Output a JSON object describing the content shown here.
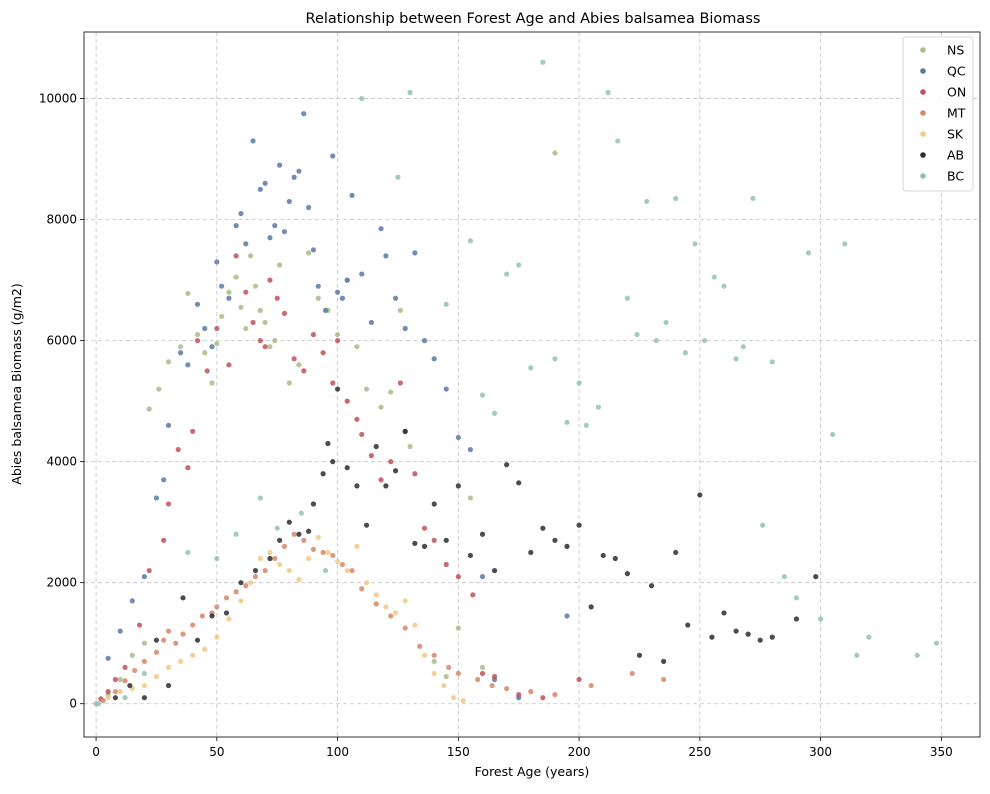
{
  "chart_data": {
    "type": "scatter",
    "title": "Relationship between Forest Age and Abies balsamea Biomass",
    "xlabel": "Forest Age (years)",
    "ylabel": "Abies balsamea Biomass (g/m2)",
    "xlim": [
      -5,
      366
    ],
    "ylim": [
      -550,
      11100
    ],
    "xticks": [
      0,
      50,
      100,
      150,
      200,
      250,
      300,
      350
    ],
    "yticks": [
      0,
      2000,
      4000,
      6000,
      8000,
      10000
    ],
    "xtick_labels": [
      "0",
      "50",
      "100",
      "150",
      "200",
      "250",
      "300",
      "350"
    ],
    "ytick_labels": [
      "0",
      "2000",
      "4000",
      "6000",
      "8000",
      "10000"
    ],
    "grid": true,
    "legend_position": "top-right",
    "series": [
      {
        "name": "NS",
        "color": "#a8bc8a",
        "x": [
          0,
          5,
          10,
          15,
          20,
          22,
          26,
          30,
          35,
          38,
          42,
          45,
          48,
          50,
          52,
          55,
          58,
          60,
          62,
          64,
          66,
          68,
          70,
          72,
          74,
          76,
          80,
          84,
          88,
          92,
          96,
          100,
          104,
          108,
          112,
          118,
          122,
          126,
          130,
          140,
          145,
          150,
          155,
          160,
          190
        ],
        "y": [
          0,
          150,
          400,
          800,
          1000,
          4870,
          5200,
          5650,
          5900,
          6780,
          6100,
          5800,
          5300,
          5950,
          6400,
          6800,
          7050,
          6550,
          6200,
          7400,
          6900,
          6500,
          6300,
          5900,
          6000,
          7250,
          5300,
          5600,
          7450,
          6700,
          6500,
          6100,
          7000,
          5900,
          5200,
          4900,
          5150,
          6500,
          4250,
          700,
          450,
          1250,
          3400,
          600,
          9100
        ]
      },
      {
        "name": "QC",
        "color": "#5879a6",
        "x": [
          5,
          10,
          15,
          20,
          25,
          28,
          30,
          35,
          38,
          42,
          45,
          48,
          50,
          52,
          55,
          58,
          60,
          62,
          65,
          68,
          70,
          72,
          74,
          76,
          78,
          80,
          82,
          84,
          86,
          88,
          90,
          92,
          95,
          98,
          100,
          102,
          104,
          106,
          110,
          114,
          118,
          120,
          124,
          128,
          132,
          136,
          140,
          145,
          150,
          155,
          160,
          165,
          175,
          195
        ],
        "y": [
          750,
          1200,
          1700,
          2100,
          3400,
          3700,
          4600,
          5800,
          5600,
          6600,
          6200,
          5900,
          7300,
          6900,
          6700,
          7900,
          8100,
          7600,
          9300,
          8500,
          8600,
          7700,
          7900,
          8900,
          7800,
          8300,
          8700,
          8800,
          9750,
          8200,
          7500,
          6900,
          6500,
          9050,
          6800,
          6700,
          7000,
          8400,
          7100,
          6300,
          7850,
          7400,
          6700,
          6200,
          7450,
          6000,
          5700,
          5200,
          4400,
          4200,
          2100,
          400,
          100,
          1450
        ]
      },
      {
        "name": "ON",
        "color": "#c0505c",
        "x": [
          2,
          5,
          8,
          12,
          18,
          22,
          28,
          30,
          34,
          38,
          40,
          42,
          46,
          50,
          55,
          58,
          62,
          65,
          68,
          70,
          72,
          75,
          78,
          82,
          86,
          90,
          94,
          98,
          100,
          104,
          108,
          110,
          114,
          118,
          122,
          126,
          128,
          132,
          136,
          140,
          145,
          150,
          156,
          160,
          165,
          175,
          185,
          200
        ],
        "y": [
          80,
          200,
          400,
          600,
          1300,
          2200,
          2700,
          3300,
          4200,
          3900,
          4500,
          6000,
          5500,
          6200,
          5600,
          7400,
          6800,
          6300,
          6000,
          5900,
          7000,
          6700,
          6450,
          5700,
          5500,
          6100,
          5800,
          5300,
          6000,
          5000,
          4700,
          4450,
          4100,
          3700,
          4000,
          5300,
          4500,
          3800,
          2900,
          2700,
          2300,
          2100,
          1800,
          500,
          450,
          150,
          100,
          400
        ]
      },
      {
        "name": "MT",
        "color": "#d5876a",
        "x": [
          3,
          8,
          12,
          16,
          20,
          25,
          28,
          30,
          33,
          36,
          40,
          44,
          48,
          50,
          54,
          58,
          62,
          66,
          70,
          74,
          78,
          82,
          86,
          90,
          94,
          98,
          102,
          106,
          110,
          116,
          122,
          128,
          134,
          140,
          146,
          150,
          158,
          164,
          170,
          180,
          190,
          205,
          222,
          235
        ],
        "y": [
          50,
          200,
          380,
          550,
          700,
          850,
          1050,
          1200,
          1000,
          1150,
          1300,
          1450,
          1500,
          1600,
          1750,
          1850,
          1950,
          2100,
          2200,
          2400,
          2600,
          2800,
          2700,
          2550,
          2500,
          2450,
          2300,
          2200,
          1900,
          1650,
          1450,
          1250,
          950,
          800,
          600,
          500,
          400,
          300,
          250,
          200,
          150,
          300,
          500,
          400
        ]
      },
      {
        "name": "SK",
        "color": "#f0c987",
        "x": [
          5,
          10,
          15,
          20,
          25,
          30,
          35,
          40,
          45,
          50,
          55,
          60,
          64,
          68,
          72,
          76,
          80,
          84,
          88,
          92,
          96,
          100,
          104,
          108,
          112,
          116,
          120,
          124,
          128,
          132,
          136,
          140,
          144,
          148,
          152
        ],
        "y": [
          100,
          200,
          250,
          300,
          450,
          600,
          700,
          800,
          900,
          1100,
          1400,
          1700,
          2000,
          2400,
          2500,
          2300,
          2200,
          2050,
          2400,
          2750,
          2500,
          2350,
          2200,
          2600,
          2000,
          1800,
          1600,
          1500,
          1700,
          1300,
          800,
          500,
          300,
          100,
          50
        ]
      },
      {
        "name": "AB",
        "color": "#2b2b33",
        "x": [
          8,
          14,
          20,
          25,
          30,
          36,
          42,
          48,
          54,
          60,
          66,
          72,
          76,
          80,
          84,
          88,
          90,
          94,
          96,
          98,
          100,
          104,
          108,
          112,
          116,
          120,
          124,
          128,
          132,
          136,
          140,
          145,
          150,
          155,
          160,
          165,
          170,
          175,
          180,
          185,
          190,
          195,
          200,
          205,
          210,
          215,
          220,
          225,
          230,
          235,
          240,
          245,
          250,
          255,
          260,
          265,
          270,
          275,
          280,
          290,
          298
        ],
        "y": [
          100,
          300,
          100,
          1050,
          300,
          1750,
          1050,
          1450,
          1500,
          2000,
          2200,
          2400,
          2700,
          3000,
          2800,
          2850,
          3300,
          3800,
          4300,
          4000,
          5200,
          3900,
          3600,
          2950,
          4250,
          3600,
          3850,
          4500,
          2650,
          2600,
          3300,
          2700,
          3600,
          2450,
          2800,
          2200,
          3950,
          3650,
          2500,
          2900,
          2700,
          2600,
          2950,
          1600,
          2450,
          2400,
          2150,
          800,
          1950,
          700,
          2500,
          1300,
          3450,
          1100,
          1500,
          1200,
          1150,
          1050,
          1100,
          1400,
          2100
        ]
      },
      {
        "name": "BC",
        "color": "#94c1b9",
        "x": [
          1,
          12,
          20,
          38,
          50,
          58,
          68,
          75,
          85,
          95,
          110,
          125,
          130,
          145,
          155,
          160,
          165,
          170,
          175,
          180,
          185,
          190,
          195,
          200,
          203,
          208,
          212,
          216,
          220,
          224,
          228,
          232,
          236,
          240,
          244,
          248,
          252,
          256,
          260,
          265,
          268,
          272,
          276,
          280,
          285,
          290,
          295,
          300,
          305,
          310,
          315,
          320,
          340,
          348
        ],
        "y": [
          0,
          100,
          500,
          2500,
          2400,
          2800,
          3400,
          2900,
          3150,
          2200,
          10000,
          8700,
          10100,
          6600,
          7650,
          5100,
          4800,
          7100,
          7250,
          5550,
          10600,
          5700,
          4650,
          5300,
          4600,
          4900,
          10100,
          9300,
          6700,
          6100,
          8300,
          6000,
          6300,
          8350,
          5800,
          7600,
          6000,
          7050,
          6900,
          5700,
          5900,
          8350,
          2950,
          5650,
          2100,
          1750,
          7450,
          1400,
          4450,
          7600,
          800,
          1100,
          800,
          1000
        ]
      }
    ]
  }
}
